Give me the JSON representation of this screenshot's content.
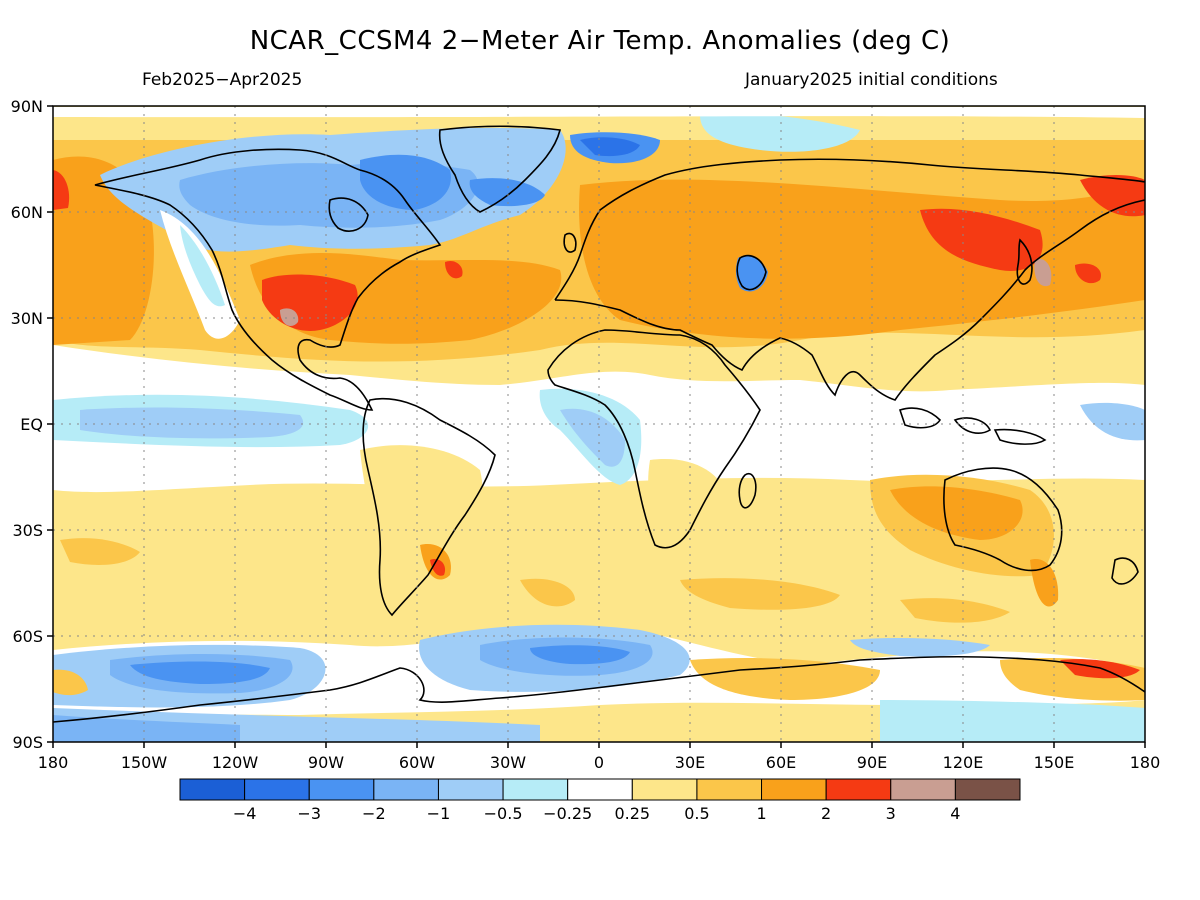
{
  "title": "NCAR_CCSM4 2−Meter Air Temp. Anomalies (deg C)",
  "period": "Feb2025−Apr2025",
  "init": "January2025 initial conditions",
  "lat_labels": [
    "90N",
    "60N",
    "30N",
    "EQ",
    "30S",
    "60S",
    "90S"
  ],
  "lon_labels": [
    "180",
    "150W",
    "120W",
    "90W",
    "60W",
    "30W",
    "0",
    "30E",
    "60E",
    "90E",
    "120E",
    "150E",
    "180"
  ],
  "colorbar": {
    "colors": [
      "#1b5fd6",
      "#2b73e8",
      "#4a93f2",
      "#7ab4f5",
      "#9fcdf7",
      "#b6ecf7",
      "#ffffff",
      "#fde68a",
      "#fbc64a",
      "#f9a11b",
      "#f53a13",
      "#c99e92",
      "#7a5247"
    ],
    "labels": [
      "−4",
      "−3",
      "−2",
      "−1",
      "−0.5",
      "−0.25",
      "0.25",
      "0.5",
      "1",
      "2",
      "3",
      "4"
    ]
  }
}
